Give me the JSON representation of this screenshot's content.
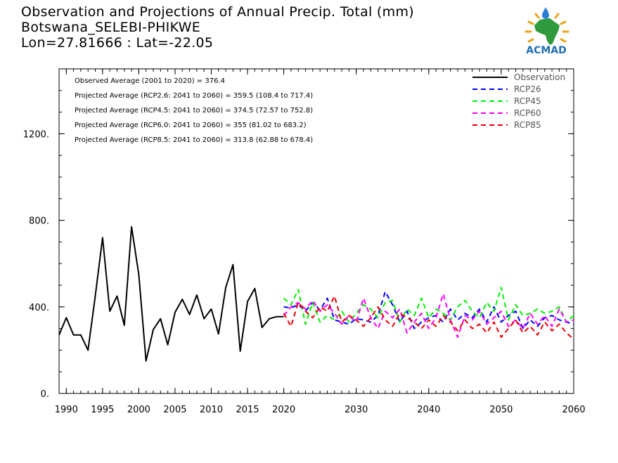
{
  "title": {
    "line1": "Observation and Projections of Annual Precip. Total (mm)",
    "line2": "Botswana_SELEBI-PHIKWE",
    "line3": "Lon=27.81666 : Lat=-22.05"
  },
  "logo": {
    "text": "ACMAD",
    "icon": "acmad-africa-logo-icon"
  },
  "stats": [
    "Observed Average (2001 to 2020) = 376.4",
    "Projected Average (RCP2.6: 2041 to 2060) = 359.5 (108.4 to 717.4)",
    "Projected Average (RCP4.5: 2041 to 2060) = 374.5 (72.57 to 752.8)",
    "Projected Average (RCP6.0: 2041 to 2060) = 355 (81.02 to 683.2)",
    "Projected Average (RCP8.5: 2041 to 2060) = 313.8 (62.88 to 678.4)"
  ],
  "chart_data": {
    "type": "line",
    "xlim": [
      1989,
      2060
    ],
    "ylim": [
      0,
      1500
    ],
    "x_ticks": [
      1990,
      1995,
      2000,
      2005,
      2010,
      2015,
      2020,
      2030,
      2040,
      2050,
      2060
    ],
    "y_ticks": [
      0,
      400,
      800,
      1200
    ],
    "y_tick_labels": [
      "0.",
      "400.",
      "800.",
      "1200."
    ],
    "legend_position": "top-right",
    "series": [
      {
        "name": "Observation",
        "color": "#000000",
        "dash": "solid",
        "x": [
          1989,
          1990,
          1991,
          1992,
          1993,
          1994,
          1995,
          1996,
          1997,
          1998,
          1999,
          2000,
          2001,
          2002,
          2003,
          2004,
          2005,
          2006,
          2007,
          2008,
          2009,
          2010,
          2011,
          2012,
          2013,
          2014,
          2015,
          2016,
          2017,
          2018,
          2019,
          2020
        ],
        "y": [
          270,
          350,
          270,
          270,
          200,
          450,
          720,
          380,
          450,
          315,
          770,
          550,
          150,
          295,
          345,
          225,
          375,
          435,
          365,
          455,
          345,
          390,
          275,
          490,
          595,
          195,
          425,
          485,
          305,
          345,
          355,
          355
        ]
      },
      {
        "name": "RCP26",
        "color": "#0000ff",
        "dash": "dashed",
        "x": [
          2020,
          2021,
          2022,
          2023,
          2024,
          2025,
          2026,
          2027,
          2028,
          2029,
          2030,
          2031,
          2032,
          2033,
          2034,
          2035,
          2036,
          2037,
          2038,
          2039,
          2040,
          2041,
          2042,
          2043,
          2044,
          2045,
          2046,
          2047,
          2048,
          2049,
          2050,
          2051,
          2052,
          2053,
          2054,
          2055,
          2056,
          2057,
          2058,
          2059,
          2060
        ],
        "y": [
          400,
          395,
          410,
          380,
          420,
          385,
          440,
          340,
          330,
          320,
          345,
          340,
          330,
          360,
          470,
          410,
          330,
          380,
          300,
          330,
          350,
          360,
          330,
          390,
          340,
          370,
          350,
          390,
          330,
          400,
          330,
          360,
          380,
          300,
          340,
          310,
          350,
          360,
          340,
          330,
          320
        ]
      },
      {
        "name": "RCP45",
        "color": "#00ee00",
        "dash": "dashed",
        "x": [
          2020,
          2021,
          2022,
          2023,
          2024,
          2025,
          2026,
          2027,
          2028,
          2029,
          2030,
          2031,
          2032,
          2033,
          2034,
          2035,
          2036,
          2037,
          2038,
          2039,
          2040,
          2041,
          2042,
          2043,
          2044,
          2045,
          2046,
          2047,
          2048,
          2049,
          2050,
          2051,
          2052,
          2053,
          2054,
          2055,
          2056,
          2057,
          2058,
          2059,
          2060
        ],
        "y": [
          440,
          410,
          480,
          320,
          420,
          330,
          360,
          340,
          380,
          330,
          370,
          410,
          390,
          350,
          420,
          430,
          330,
          390,
          360,
          440,
          350,
          390,
          370,
          340,
          400,
          430,
          380,
          350,
          420,
          380,
          490,
          340,
          410,
          360,
          370,
          390,
          370,
          380,
          400,
          330,
          360
        ]
      },
      {
        "name": "RCP60",
        "color": "#ff00ff",
        "dash": "dashed",
        "x": [
          2020,
          2021,
          2022,
          2023,
          2024,
          2025,
          2026,
          2027,
          2028,
          2029,
          2030,
          2031,
          2032,
          2033,
          2034,
          2035,
          2036,
          2037,
          2038,
          2039,
          2040,
          2041,
          2042,
          2043,
          2044,
          2045,
          2046,
          2047,
          2048,
          2049,
          2050,
          2051,
          2052,
          2053,
          2054,
          2055,
          2056,
          2057,
          2058,
          2059,
          2060
        ],
        "y": [
          360,
          400,
          420,
          390,
          430,
          380,
          410,
          370,
          320,
          360,
          330,
          440,
          350,
          300,
          380,
          350,
          390,
          280,
          330,
          370,
          300,
          350,
          460,
          340,
          260,
          360,
          340,
          380,
          320,
          350,
          380,
          310,
          340,
          300,
          370,
          320,
          360,
          310,
          390,
          330,
          340
        ]
      },
      {
        "name": "RCP85",
        "color": "#ee0000",
        "dash": "dashed",
        "x": [
          2020,
          2021,
          2022,
          2023,
          2024,
          2025,
          2026,
          2027,
          2028,
          2029,
          2030,
          2031,
          2032,
          2033,
          2034,
          2035,
          2036,
          2037,
          2038,
          2039,
          2040,
          2041,
          2042,
          2043,
          2044,
          2045,
          2046,
          2047,
          2048,
          2049,
          2050,
          2051,
          2052,
          2053,
          2054,
          2055,
          2056,
          2057,
          2058,
          2059,
          2060
        ],
        "y": [
          370,
          310,
          420,
          380,
          350,
          400,
          380,
          450,
          330,
          360,
          340,
          310,
          350,
          400,
          340,
          310,
          370,
          350,
          330,
          300,
          340,
          310,
          360,
          330,
          290,
          340,
          300,
          320,
          280,
          330,
          260,
          300,
          340,
          280,
          310,
          270,
          330,
          290,
          320,
          280,
          250
        ]
      }
    ]
  }
}
